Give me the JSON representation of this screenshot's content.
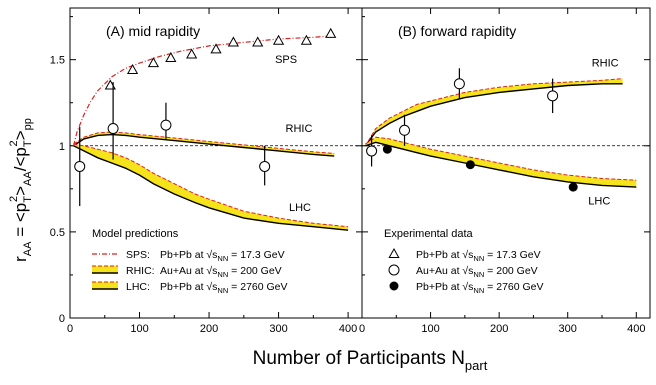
{
  "chart_data": [
    {
      "panel": "A",
      "type": "line",
      "title": "(A) mid rapidity",
      "xlim": [
        0,
        420
      ],
      "ylim": [
        0,
        1.8
      ],
      "x_ticks": [
        0,
        100,
        200,
        300,
        400
      ],
      "y_ticks": [
        0,
        0.5,
        1,
        1.5
      ],
      "reference_line": {
        "y": 1,
        "style": "dashed"
      },
      "labels": {
        "sps": "SPS",
        "rhic": "RHIC",
        "lhc": "LHC"
      },
      "legend_title": "Model predictions",
      "legend": [
        {
          "key": "SPS:",
          "text": "Pb+Pb at",
          "energy": "= 17.3 GeV"
        },
        {
          "key": "RHIC:",
          "text": "Au+Au at",
          "energy": "= 200 GeV"
        },
        {
          "key": "LHC:",
          "text": "Pb+Pb at",
          "energy": "= 2760 GeV"
        }
      ],
      "series": [
        {
          "name": "SPS",
          "style": "dash-dot-red",
          "x": [
            5,
            10,
            20,
            30,
            40,
            60,
            80,
            100,
            130,
            160,
            200,
            250,
            300,
            350,
            380
          ],
          "y": [
            1.0,
            1.08,
            1.18,
            1.26,
            1.32,
            1.4,
            1.45,
            1.48,
            1.52,
            1.55,
            1.58,
            1.6,
            1.62,
            1.63,
            1.64
          ]
        },
        {
          "name": "RHIC",
          "style": "band-yellow",
          "x": [
            5,
            20,
            40,
            60,
            80,
            100,
            150,
            200,
            250,
            300,
            350,
            380
          ],
          "y_low": [
            1.0,
            1.04,
            1.06,
            1.065,
            1.06,
            1.05,
            1.03,
            1.01,
            0.99,
            0.97,
            0.95,
            0.94
          ],
          "y_high": [
            1.01,
            1.05,
            1.075,
            1.08,
            1.075,
            1.065,
            1.045,
            1.025,
            1.005,
            0.985,
            0.965,
            0.955
          ]
        },
        {
          "name": "LHC",
          "style": "band-yellow",
          "x": [
            5,
            20,
            40,
            60,
            80,
            100,
            120,
            150,
            180,
            200,
            250,
            300,
            350,
            400
          ],
          "y_low": [
            1.0,
            0.97,
            0.93,
            0.9,
            0.87,
            0.83,
            0.78,
            0.72,
            0.67,
            0.64,
            0.58,
            0.55,
            0.53,
            0.51
          ],
          "y_high": [
            1.01,
            1.0,
            0.98,
            0.96,
            0.93,
            0.89,
            0.84,
            0.78,
            0.72,
            0.69,
            0.62,
            0.58,
            0.55,
            0.53
          ]
        },
        {
          "name": "SPS data",
          "marker": "open-triangle",
          "x": [
            58,
            90,
            120,
            145,
            175,
            210,
            235,
            270,
            300,
            340,
            375
          ],
          "y": [
            1.35,
            1.44,
            1.48,
            1.51,
            1.53,
            1.56,
            1.6,
            1.6,
            1.61,
            1.61,
            1.65
          ]
        },
        {
          "name": "RHIC data",
          "marker": "open-circle",
          "x": [
            14,
            62,
            138,
            280
          ],
          "y": [
            0.88,
            1.1,
            1.12,
            0.88
          ],
          "err_lo": [
            0.23,
            0.18,
            0.08,
            0.11
          ],
          "err_hi": [
            0.23,
            0.27,
            0.13,
            0.12
          ]
        }
      ]
    },
    {
      "panel": "B",
      "type": "line",
      "title": "(B) forward rapidity",
      "xlim": [
        0,
        420
      ],
      "ylim": [
        0,
        1.8
      ],
      "x_ticks": [
        0,
        100,
        200,
        300,
        400
      ],
      "y_ticks": [
        0,
        0.5,
        1,
        1.5
      ],
      "reference_line": {
        "y": 1,
        "style": "dashed"
      },
      "labels": {
        "rhic": "RHIC",
        "lhc": "LHC"
      },
      "legend_title": "Experimental data",
      "legend": [
        {
          "marker": "open-triangle",
          "text": "Pb+Pb at",
          "energy": "= 17.3 GeV"
        },
        {
          "marker": "open-circle",
          "text": "Au+Au at",
          "energy": "= 200 GeV"
        },
        {
          "marker": "filled-circle",
          "text": "Pb+Pb at",
          "energy": "= 2760 GeV"
        }
      ],
      "series": [
        {
          "name": "RHIC",
          "style": "band-yellow",
          "x": [
            5,
            20,
            40,
            60,
            80,
            100,
            150,
            200,
            250,
            300,
            350,
            380
          ],
          "y_low": [
            1.0,
            1.08,
            1.13,
            1.17,
            1.2,
            1.23,
            1.28,
            1.31,
            1.33,
            1.35,
            1.36,
            1.36
          ],
          "y_high": [
            1.0,
            1.1,
            1.16,
            1.2,
            1.24,
            1.26,
            1.31,
            1.34,
            1.36,
            1.37,
            1.38,
            1.39
          ]
        },
        {
          "name": "LHC",
          "style": "band-yellow",
          "x": [
            5,
            20,
            40,
            60,
            80,
            100,
            150,
            200,
            250,
            300,
            350,
            400
          ],
          "y_low": [
            1.0,
            1.02,
            1.0,
            0.98,
            0.96,
            0.94,
            0.9,
            0.86,
            0.82,
            0.79,
            0.77,
            0.76
          ],
          "y_high": [
            1.01,
            1.05,
            1.04,
            1.02,
            1.0,
            0.98,
            0.94,
            0.9,
            0.86,
            0.83,
            0.81,
            0.8
          ]
        },
        {
          "name": "RHIC data",
          "marker": "open-circle",
          "x": [
            14,
            62,
            142,
            278
          ],
          "y": [
            0.97,
            1.09,
            1.36,
            1.29
          ],
          "err_lo": [
            0.09,
            0.09,
            0.09,
            0.1
          ],
          "err_hi": [
            0.09,
            0.09,
            0.09,
            0.1
          ]
        },
        {
          "name": "LHC data",
          "marker": "filled-circle",
          "x": [
            37,
            158,
            308
          ],
          "y": [
            0.98,
            0.89,
            0.76
          ]
        }
      ]
    }
  ],
  "axes": {
    "xlabel": "Number of Participants N",
    "xlabel_sub": "part",
    "ylabel": {
      "r": "r",
      "aa": "AA",
      "eq": " = <p",
      "t": "T",
      "two": "2",
      "mid": ">",
      "aa2": "AA",
      "slash": "/<p",
      "t2": "T",
      "two2": "2",
      "end": ">",
      "pp": "pp"
    }
  },
  "sqrt_label": {
    "s": "s",
    "nn": "NN"
  }
}
